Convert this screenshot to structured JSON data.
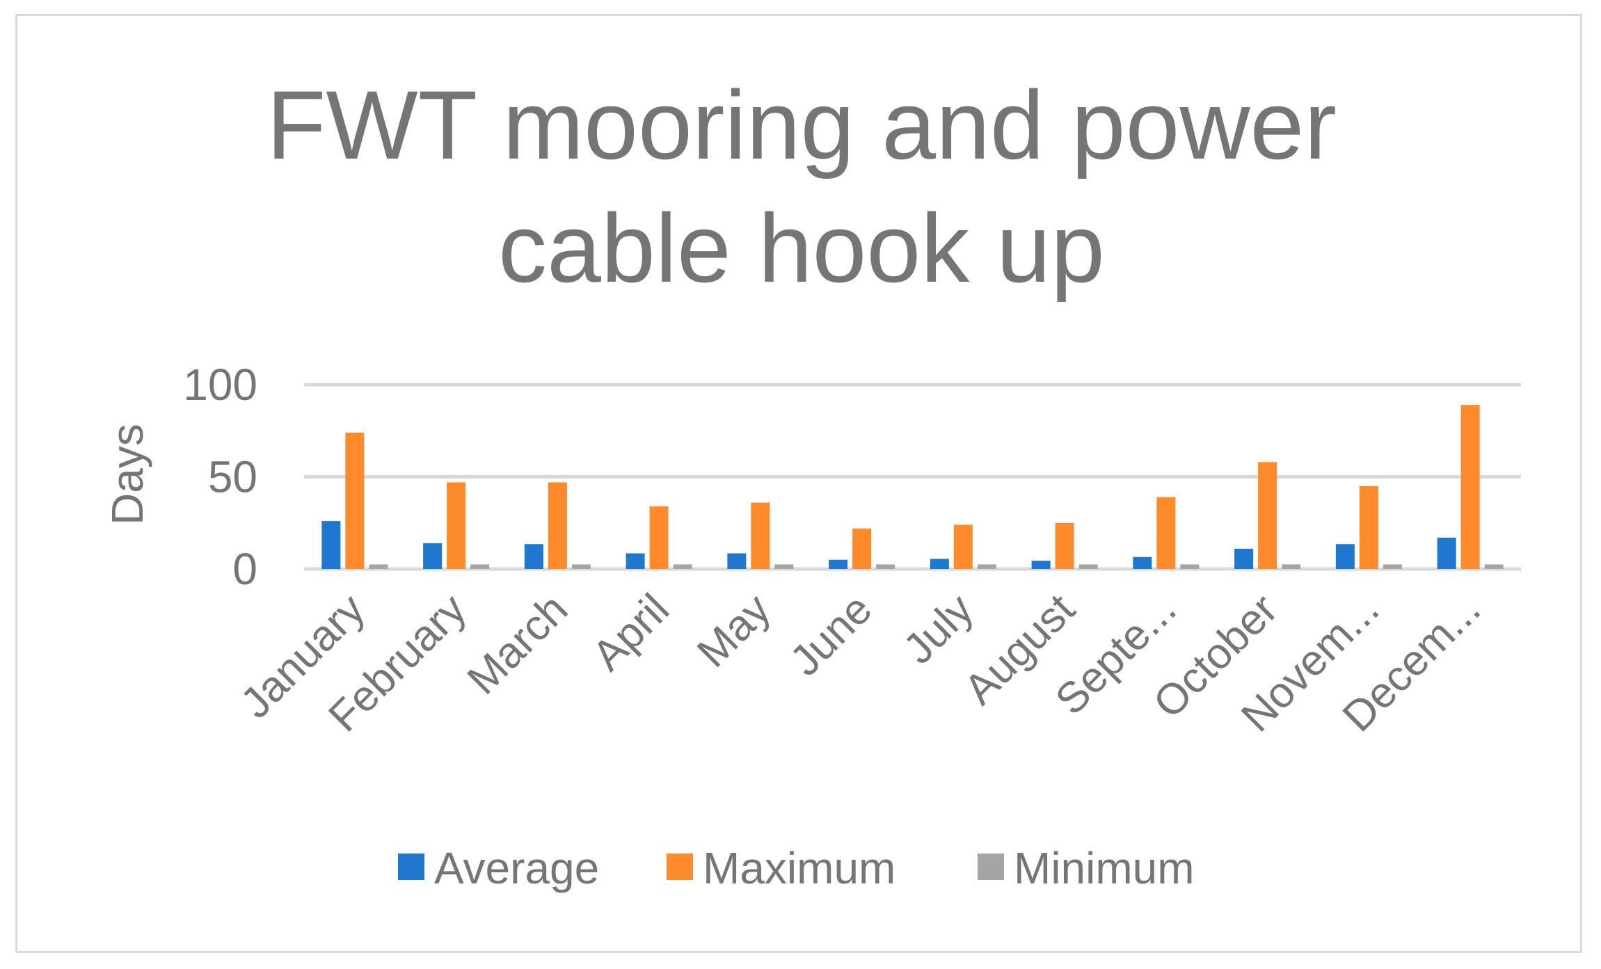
{
  "chart_data": {
    "type": "bar",
    "title": "FWT mooring and power cable hook up",
    "title_lines": [
      "FWT mooring and power",
      "cable hook up"
    ],
    "xlabel": "",
    "ylabel": "Days",
    "ylim": [
      0,
      100
    ],
    "yticks": [
      0,
      50,
      100
    ],
    "grid": true,
    "legend_position": "bottom",
    "categories": [
      "January",
      "February",
      "March",
      "April",
      "May",
      "June",
      "July",
      "August",
      "Septe...",
      "October",
      "Novem...",
      "Decem..."
    ],
    "series": [
      {
        "name": "Average",
        "color": "#1f77d0",
        "values": [
          26,
          14,
          13.5,
          8.5,
          8.5,
          5,
          5.5,
          4.5,
          6.5,
          11,
          13.5,
          17
        ]
      },
      {
        "name": "Maximum",
        "color": "#ff8a2b",
        "values": [
          74,
          47,
          47,
          34,
          36,
          22,
          24,
          25,
          39,
          58,
          45,
          89
        ]
      },
      {
        "name": "Minimum",
        "color": "#a5a5a5",
        "values": [
          2.5,
          2.5,
          2.5,
          2.5,
          2.5,
          2.5,
          2.5,
          2.5,
          2.5,
          2.5,
          2.5,
          2.5
        ]
      }
    ]
  },
  "colors": {
    "text": "#757575",
    "grid": "#d9d9d9",
    "border": "#d9d9d9"
  }
}
